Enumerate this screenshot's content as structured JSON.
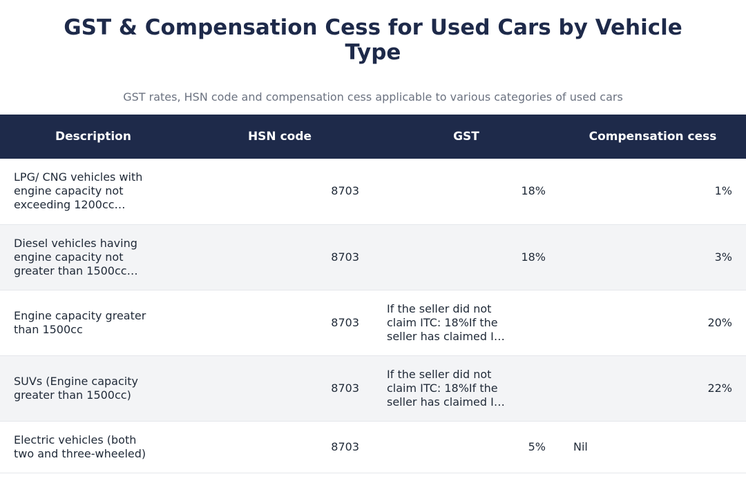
{
  "title": "GST & Compensation Cess for Used Cars by Vehicle Type",
  "subtitle": "GST rates, HSN code and compensation cess applicable to various categories of used cars",
  "table": {
    "headers": [
      "Description",
      "HSN code",
      "GST",
      "Compensation cess"
    ],
    "rows": [
      {
        "description": "LPG/ CNG vehicles with engine capacity not exceeding 1200cc…",
        "hsn": "8703",
        "gst": "18%",
        "cess": "1%"
      },
      {
        "description": "Diesel vehicles having engine capacity not greater than 1500cc…",
        "hsn": "8703",
        "gst": "18%",
        "cess": "3%"
      },
      {
        "description": "Engine capacity greater than 1500cc",
        "hsn": "8703",
        "gst": "If the seller did not claim ITC: 18%If the seller has claimed I…",
        "cess": "20%"
      },
      {
        "description": "SUVs (Engine capacity greater than 1500cc)",
        "hsn": "8703",
        "gst": "If the seller did not claim ITC: 18%If the seller has claimed I…",
        "cess": "22%"
      },
      {
        "description": "Electric vehicles (both two and three-wheeled)",
        "hsn": "8703",
        "gst": "5%",
        "cess": "Nil"
      }
    ]
  }
}
